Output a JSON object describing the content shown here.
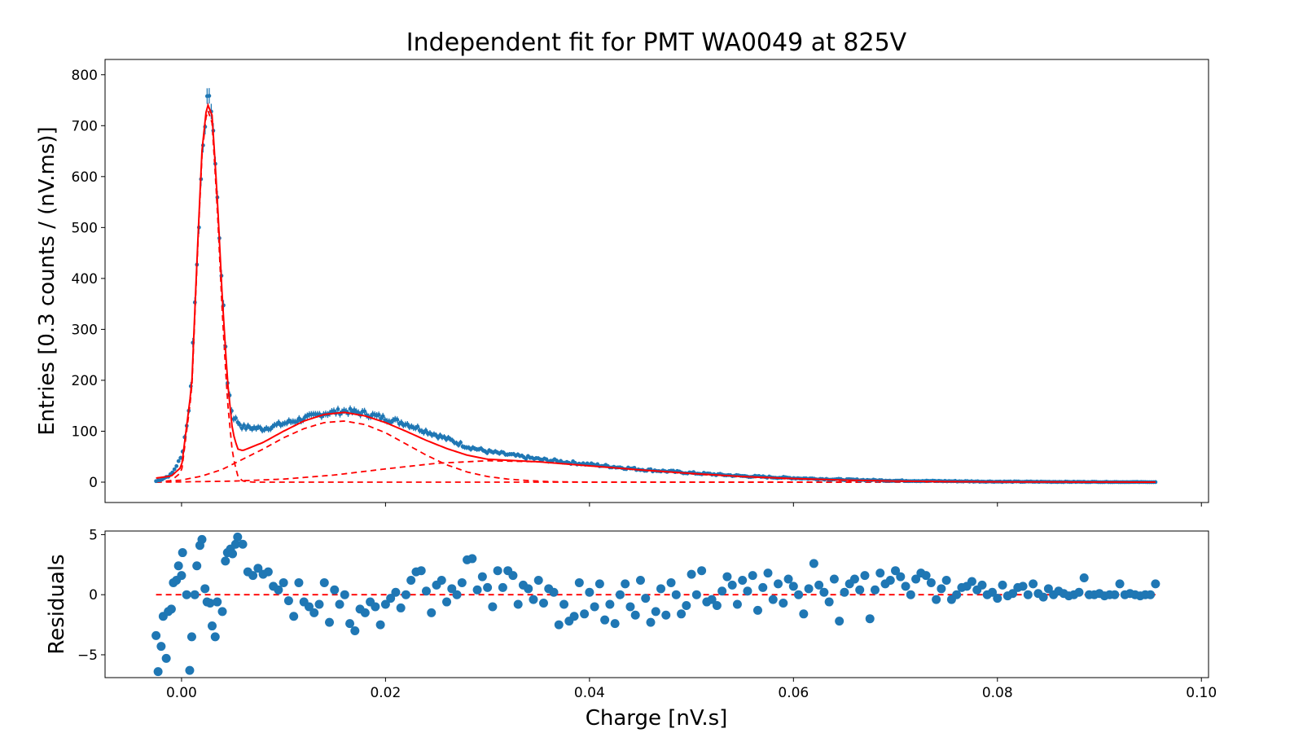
{
  "chart_data": [
    {
      "type": "scatter",
      "panel": "main",
      "title": "Independent fit for PMT WA0049 at 825V",
      "xlabel": "",
      "ylabel": "Entries [0.3 counts / (nV.ms)]",
      "xlim": [
        -0.0075,
        0.1007
      ],
      "ylim": [
        -40,
        830
      ],
      "xticks": [
        0.0,
        0.02,
        0.04,
        0.06,
        0.08,
        0.1
      ],
      "yticks": [
        0,
        100,
        200,
        300,
        400,
        500,
        600,
        700,
        800
      ],
      "ytick_labels": [
        "0",
        "100",
        "200",
        "300",
        "400",
        "500",
        "600",
        "700",
        "800"
      ],
      "grid": false,
      "data_color": "#1f77b4",
      "fit_color": "#ff0000",
      "x_range": [
        -0.0025,
        0.0955
      ],
      "n_points": 490,
      "profile": {
        "x": [
          -0.0025,
          -0.002,
          -0.001,
          0.0,
          0.0008,
          0.0015,
          0.002,
          0.0025,
          0.003,
          0.0035,
          0.004,
          0.0045,
          0.005,
          0.006,
          0.008,
          0.01,
          0.012,
          0.014,
          0.016,
          0.018,
          0.02,
          0.022,
          0.024,
          0.026,
          0.028,
          0.03,
          0.035,
          0.04,
          0.045,
          0.05,
          0.055,
          0.06,
          0.065,
          0.07,
          0.075,
          0.08,
          0.0955
        ],
        "y": [
          2,
          5,
          15,
          50,
          150,
          430,
          620,
          760,
          730,
          560,
          380,
          200,
          130,
          108,
          105,
          115,
          125,
          135,
          140,
          135,
          125,
          115,
          100,
          85,
          70,
          60,
          45,
          35,
          25,
          18,
          12,
          8,
          5,
          3,
          2,
          1,
          0
        ]
      },
      "fit": {
        "total": {
          "x": [
            -0.0025,
            -0.001,
            0.0,
            0.001,
            0.0015,
            0.002,
            0.0025,
            0.003,
            0.0035,
            0.004,
            0.0045,
            0.005,
            0.0055,
            0.006,
            0.008,
            0.01,
            0.012,
            0.014,
            0.016,
            0.018,
            0.02,
            0.022,
            0.024,
            0.026,
            0.028,
            0.03,
            0.035,
            0.04,
            0.045,
            0.05,
            0.055,
            0.06,
            0.065,
            0.07,
            0.075,
            0.08,
            0.0955
          ],
          "y": [
            8,
            12,
            30,
            190,
            430,
            650,
            745,
            720,
            560,
            360,
            200,
            100,
            65,
            62,
            78,
            100,
            120,
            133,
            137,
            130,
            117,
            100,
            82,
            66,
            53,
            45,
            40,
            32,
            24,
            17,
            11,
            7,
            4,
            2,
            1,
            0.5,
            0
          ]
        },
        "components": [
          {
            "x": [
              -0.0025,
              -0.001,
              0.0,
              0.001,
              0.0015,
              0.002,
              0.0025,
              0.003,
              0.0035,
              0.004,
              0.0045,
              0.005,
              0.0055,
              0.006,
              0.007,
              0.0955
            ],
            "y": [
              0,
              3,
              20,
              180,
              420,
              640,
              735,
              705,
              540,
              330,
              160,
              55,
              12,
              2,
              0,
              0
            ]
          },
          {
            "x": [
              -0.0025,
              0.0,
              0.002,
              0.004,
              0.006,
              0.008,
              0.01,
              0.012,
              0.014,
              0.016,
              0.018,
              0.02,
              0.022,
              0.024,
              0.026,
              0.028,
              0.03,
              0.032,
              0.034,
              0.036,
              0.04,
              0.0955
            ],
            "y": [
              0,
              4,
              12,
              25,
              45,
              65,
              87,
              105,
              117,
              120,
              113,
              97,
              75,
              53,
              34,
              20,
              11,
              6,
              3,
              1,
              0,
              0
            ]
          },
          {
            "x": [
              -0.0025,
              0.0,
              0.005,
              0.01,
              0.015,
              0.02,
              0.025,
              0.03,
              0.035,
              0.04,
              0.045,
              0.05,
              0.055,
              0.06,
              0.065,
              0.07,
              0.08,
              0.0955
            ],
            "y": [
              0,
              0.5,
              2,
              6,
              14,
              26,
              37,
              42,
              40,
              33,
              24,
              16,
              10,
              6,
              3,
              1.5,
              0.4,
              0
            ]
          }
        ]
      }
    },
    {
      "type": "scatter",
      "panel": "residuals",
      "xlabel": "Charge [nV.s]",
      "ylabel": "Residuals",
      "xlim": [
        -0.0075,
        0.1007
      ],
      "ylim": [
        -6.9,
        5.3
      ],
      "xticks": [
        0.0,
        0.02,
        0.04,
        0.06,
        0.08,
        0.1
      ],
      "xtick_labels": [
        "0.00",
        "0.02",
        "0.04",
        "0.06",
        "0.08",
        "0.10"
      ],
      "yticks": [
        -5,
        0,
        5
      ],
      "ytick_labels": [
        "−5",
        "0",
        "5"
      ],
      "reference_line": 0,
      "points": [
        [
          -0.0025,
          -3.4
        ],
        [
          -0.0023,
          -6.4
        ],
        [
          -0.002,
          -4.3
        ],
        [
          -0.0018,
          -1.8
        ],
        [
          -0.0015,
          -5.3
        ],
        [
          -0.0013,
          -1.4
        ],
        [
          -0.001,
          -1.2
        ],
        [
          -0.0008,
          1.0
        ],
        [
          -0.0005,
          1.2
        ],
        [
          -0.0003,
          2.4
        ],
        [
          0.0,
          1.6
        ],
        [
          0.0001,
          3.5
        ],
        [
          0.0005,
          0.0
        ],
        [
          0.0008,
          -6.3
        ],
        [
          0.001,
          -3.5
        ],
        [
          0.0013,
          0.0
        ],
        [
          0.0015,
          2.4
        ],
        [
          0.0018,
          4.1
        ],
        [
          0.002,
          4.6
        ],
        [
          0.0023,
          0.5
        ],
        [
          0.0025,
          -0.6
        ],
        [
          0.0028,
          -0.7
        ],
        [
          0.003,
          -2.6
        ],
        [
          0.0033,
          -3.5
        ],
        [
          0.0035,
          -0.6
        ],
        [
          0.004,
          -1.4
        ],
        [
          0.0043,
          2.8
        ],
        [
          0.0045,
          3.5
        ],
        [
          0.0048,
          3.8
        ],
        [
          0.005,
          3.4
        ],
        [
          0.0053,
          4.2
        ],
        [
          0.0055,
          4.8
        ],
        [
          0.006,
          4.2
        ],
        [
          0.0065,
          1.9
        ],
        [
          0.007,
          1.6
        ],
        [
          0.0075,
          2.2
        ],
        [
          0.008,
          1.7
        ],
        [
          0.0085,
          1.9
        ],
        [
          0.009,
          0.7
        ],
        [
          0.0095,
          0.4
        ],
        [
          0.01,
          1.0
        ],
        [
          0.0105,
          -0.5
        ],
        [
          0.011,
          -1.8
        ],
        [
          0.0115,
          1.0
        ],
        [
          0.012,
          -0.6
        ],
        [
          0.0125,
          -1.0
        ],
        [
          0.013,
          -1.5
        ],
        [
          0.0135,
          -0.8
        ],
        [
          0.014,
          1.0
        ],
        [
          0.0145,
          -2.3
        ],
        [
          0.015,
          0.4
        ],
        [
          0.0155,
          -0.8
        ],
        [
          0.016,
          0.0
        ],
        [
          0.0165,
          -2.4
        ],
        [
          0.017,
          -3.0
        ],
        [
          0.0175,
          -1.2
        ],
        [
          0.018,
          -1.5
        ],
        [
          0.0185,
          -0.6
        ],
        [
          0.019,
          -1.0
        ],
        [
          0.0195,
          -2.5
        ],
        [
          0.02,
          -0.8
        ],
        [
          0.0205,
          -0.3
        ],
        [
          0.021,
          0.2
        ],
        [
          0.0215,
          -1.1
        ],
        [
          0.022,
          0.0
        ],
        [
          0.0225,
          1.2
        ],
        [
          0.023,
          1.9
        ],
        [
          0.0235,
          2.0
        ],
        [
          0.024,
          0.3
        ],
        [
          0.0245,
          -1.5
        ],
        [
          0.025,
          0.8
        ],
        [
          0.0255,
          1.2
        ],
        [
          0.026,
          -0.6
        ],
        [
          0.0265,
          0.5
        ],
        [
          0.027,
          0.0
        ],
        [
          0.0275,
          1.0
        ],
        [
          0.028,
          2.9
        ],
        [
          0.0285,
          3.0
        ],
        [
          0.029,
          0.4
        ],
        [
          0.0295,
          1.5
        ],
        [
          0.03,
          0.6
        ],
        [
          0.0305,
          -1.0
        ],
        [
          0.031,
          2.0
        ],
        [
          0.0315,
          0.6
        ],
        [
          0.032,
          2.0
        ],
        [
          0.0325,
          1.6
        ],
        [
          0.033,
          -0.8
        ],
        [
          0.0335,
          0.8
        ],
        [
          0.034,
          0.5
        ],
        [
          0.0345,
          -0.4
        ],
        [
          0.035,
          1.2
        ],
        [
          0.0355,
          -0.7
        ],
        [
          0.036,
          0.5
        ],
        [
          0.0365,
          0.2
        ],
        [
          0.037,
          -2.5
        ],
        [
          0.0375,
          -0.8
        ],
        [
          0.038,
          -2.2
        ],
        [
          0.0385,
          -1.8
        ],
        [
          0.039,
          1.0
        ],
        [
          0.0395,
          -1.6
        ],
        [
          0.04,
          0.2
        ],
        [
          0.0405,
          -1.0
        ],
        [
          0.041,
          0.9
        ],
        [
          0.0415,
          -2.1
        ],
        [
          0.042,
          -0.8
        ],
        [
          0.0425,
          -2.4
        ],
        [
          0.043,
          0.0
        ],
        [
          0.0435,
          0.9
        ],
        [
          0.044,
          -1.0
        ],
        [
          0.0445,
          -1.7
        ],
        [
          0.045,
          1.2
        ],
        [
          0.0455,
          -0.3
        ],
        [
          0.046,
          -2.3
        ],
        [
          0.0465,
          -1.4
        ],
        [
          0.047,
          0.5
        ],
        [
          0.0475,
          -1.7
        ],
        [
          0.048,
          1.0
        ],
        [
          0.0485,
          0.0
        ],
        [
          0.049,
          -1.6
        ],
        [
          0.0495,
          -0.9
        ],
        [
          0.05,
          1.7
        ],
        [
          0.0505,
          0.0
        ],
        [
          0.051,
          2.0
        ],
        [
          0.0515,
          -0.6
        ],
        [
          0.052,
          -0.4
        ],
        [
          0.0525,
          -0.9
        ],
        [
          0.053,
          0.3
        ],
        [
          0.0535,
          1.5
        ],
        [
          0.054,
          0.8
        ],
        [
          0.0545,
          -0.8
        ],
        [
          0.055,
          1.2
        ],
        [
          0.0555,
          0.3
        ],
        [
          0.056,
          1.6
        ],
        [
          0.0565,
          -1.3
        ],
        [
          0.057,
          0.6
        ],
        [
          0.0575,
          1.8
        ],
        [
          0.058,
          -0.4
        ],
        [
          0.0585,
          0.9
        ],
        [
          0.059,
          -0.7
        ],
        [
          0.0595,
          1.3
        ],
        [
          0.06,
          0.7
        ],
        [
          0.0605,
          0.0
        ],
        [
          0.061,
          -1.6
        ],
        [
          0.0615,
          0.5
        ],
        [
          0.062,
          2.6
        ],
        [
          0.0625,
          0.8
        ],
        [
          0.063,
          0.2
        ],
        [
          0.0635,
          -0.6
        ],
        [
          0.064,
          1.3
        ],
        [
          0.0645,
          -2.2
        ],
        [
          0.065,
          0.2
        ],
        [
          0.0655,
          0.9
        ],
        [
          0.066,
          1.3
        ],
        [
          0.0665,
          0.4
        ],
        [
          0.067,
          1.6
        ],
        [
          0.0675,
          -2.0
        ],
        [
          0.068,
          0.4
        ],
        [
          0.0685,
          1.8
        ],
        [
          0.069,
          0.9
        ],
        [
          0.0695,
          1.2
        ],
        [
          0.07,
          2.0
        ],
        [
          0.0705,
          1.5
        ],
        [
          0.071,
          0.7
        ],
        [
          0.0715,
          0.0
        ],
        [
          0.072,
          1.3
        ],
        [
          0.0725,
          1.8
        ],
        [
          0.073,
          1.6
        ],
        [
          0.0735,
          1.0
        ],
        [
          0.074,
          -0.4
        ],
        [
          0.0745,
          0.5
        ],
        [
          0.075,
          1.2
        ],
        [
          0.0755,
          -0.4
        ],
        [
          0.076,
          0.0
        ],
        [
          0.0765,
          0.6
        ],
        [
          0.077,
          0.7
        ],
        [
          0.0775,
          1.1
        ],
        [
          0.078,
          0.4
        ],
        [
          0.0785,
          0.8
        ],
        [
          0.079,
          0.0
        ],
        [
          0.0795,
          0.2
        ],
        [
          0.08,
          -0.3
        ],
        [
          0.0805,
          0.8
        ],
        [
          0.081,
          -0.1
        ],
        [
          0.0815,
          0.1
        ],
        [
          0.082,
          0.6
        ],
        [
          0.0825,
          0.7
        ],
        [
          0.083,
          0.0
        ],
        [
          0.0835,
          0.9
        ],
        [
          0.084,
          0.1
        ],
        [
          0.0845,
          -0.2
        ],
        [
          0.085,
          0.5
        ],
        [
          0.0855,
          0.0
        ],
        [
          0.086,
          0.3
        ],
        [
          0.0865,
          0.1
        ],
        [
          0.087,
          -0.1
        ],
        [
          0.0875,
          0.0
        ],
        [
          0.088,
          0.2
        ],
        [
          0.0885,
          1.4
        ],
        [
          0.089,
          0.0
        ],
        [
          0.0895,
          0.0
        ],
        [
          0.09,
          0.1
        ],
        [
          0.0905,
          -0.1
        ],
        [
          0.091,
          0.0
        ],
        [
          0.0915,
          0.0
        ],
        [
          0.092,
          0.9
        ],
        [
          0.0925,
          0.0
        ],
        [
          0.093,
          0.1
        ],
        [
          0.0935,
          0.0
        ],
        [
          0.094,
          -0.1
        ],
        [
          0.0945,
          0.0
        ],
        [
          0.095,
          0.0
        ],
        [
          0.0955,
          0.9
        ]
      ]
    }
  ]
}
